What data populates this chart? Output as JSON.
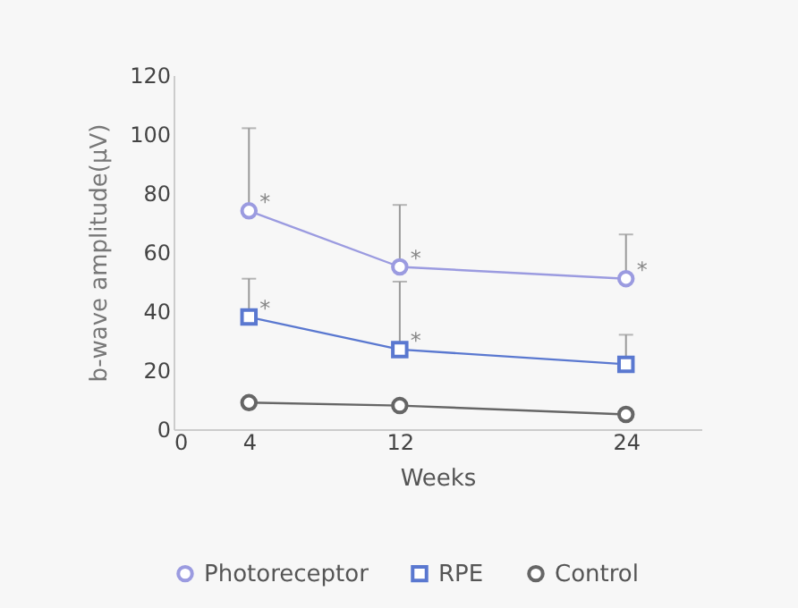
{
  "chart_data": {
    "type": "line",
    "xlabel": "Weeks",
    "ylabel": "b-wave amplitude(μV)",
    "x": [
      4,
      12,
      24
    ],
    "xlim": [
      0,
      28
    ],
    "xticks": [
      0,
      4,
      12,
      24
    ],
    "ylim": [
      0,
      120
    ],
    "yticks": [
      0,
      20,
      40,
      60,
      80,
      100,
      120
    ],
    "grid": false,
    "legend": "bottom",
    "series": [
      {
        "name": "Photoreceptor",
        "color": "#9b9be0",
        "marker": "circle",
        "values": [
          74,
          55,
          51
        ],
        "errors": [
          [
            74,
            102
          ],
          [
            55,
            76
          ],
          [
            51,
            66
          ]
        ]
      },
      {
        "name": "RPE",
        "color": "#5a78d0",
        "marker": "square",
        "values": [
          38,
          27,
          22
        ],
        "errors": [
          [
            38,
            51
          ],
          [
            27,
            50
          ],
          [
            22,
            32
          ]
        ]
      },
      {
        "name": "Control",
        "color": "#666666",
        "marker": "circle",
        "values": [
          9,
          8,
          5
        ]
      }
    ],
    "annotations": [
      {
        "text": "*",
        "x": 4,
        "y": 74
      },
      {
        "text": "*",
        "x": 12,
        "y": 55
      },
      {
        "text": "*",
        "x": 24,
        "y": 51
      },
      {
        "text": "*",
        "x": 4,
        "y": 38
      },
      {
        "text": "*",
        "x": 12,
        "y": 27
      }
    ]
  }
}
